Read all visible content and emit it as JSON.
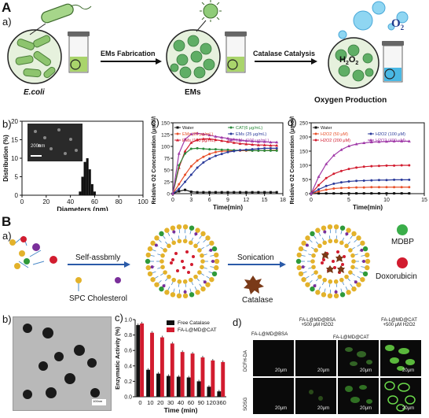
{
  "panelA": {
    "letter": "A",
    "sub_a": "a)",
    "label_ecoli": "E.coli",
    "label_ems": "EMs",
    "label_oxygen": "Oxygen Production",
    "arrow1": "EMs Fabrication",
    "arrow2": "Catalase Catalysis",
    "o2": "O",
    "o2_sub": "2",
    "h2o2": "H",
    "h2o2_sub1": "2",
    "h2o2_mid": "O",
    "h2o2_sub2": "2"
  },
  "panelAb": {
    "letter": "b)",
    "scale": "200nm",
    "chart_data": {
      "type": "bar",
      "xlabel": "Diameters (nm)",
      "ylabel": "Distribution (%)",
      "xlim": [
        0,
        100
      ],
      "ylim": [
        0,
        20
      ],
      "x_ticks": [
        "0",
        "20",
        "40",
        "60",
        "80",
        "100"
      ],
      "y_ticks": [
        "0",
        "5",
        "10",
        "15",
        "20"
      ],
      "categories": [
        48,
        50,
        52,
        54,
        56,
        58,
        60
      ],
      "values": [
        1,
        5,
        9,
        10,
        7,
        3,
        1
      ]
    }
  },
  "panelAc": {
    "letter": "c)",
    "chart_data": {
      "type": "line",
      "xlabel": "Time(min)",
      "ylabel": "Relative O2 Concentration (μmol/L)",
      "xlim": [
        0,
        18
      ],
      "ylim": [
        0,
        150
      ],
      "x_ticks": [
        "0",
        "3",
        "6",
        "9",
        "12",
        "15",
        "18"
      ],
      "y_ticks": [
        "0",
        "25",
        "50",
        "75",
        "100",
        "125",
        "150"
      ],
      "x": [
        0,
        1,
        2,
        3,
        4,
        5,
        6,
        7,
        8,
        9,
        10,
        11,
        12,
        13,
        14,
        15,
        16,
        17
      ],
      "series": [
        {
          "name": "Water",
          "color": "#111111",
          "marker": "square",
          "values": [
            0,
            5,
            8,
            4,
            3,
            3,
            3,
            3,
            3,
            3,
            3,
            3,
            3,
            3,
            3,
            3,
            3,
            3
          ]
        },
        {
          "name": "EMs (25 μg/mL)",
          "color": "#e8502a",
          "marker": "circle",
          "values": [
            0,
            20,
            40,
            58,
            70,
            78,
            84,
            88,
            90,
            90,
            91,
            91,
            91,
            91,
            91,
            91,
            92,
            92
          ]
        },
        {
          "name": "EMs (100 μg/mL)",
          "color": "#d21c2f",
          "marker": "triangle",
          "values": [
            0,
            55,
            90,
            108,
            114,
            116,
            116,
            114,
            112,
            110,
            108,
            106,
            105,
            104,
            103,
            103,
            102,
            102
          ]
        },
        {
          "name": "CAT(6 μg/mL)",
          "color": "#2a8a3a",
          "marker": "circle",
          "values": [
            0,
            60,
            85,
            95,
            96,
            95,
            94,
            94,
            93,
            93,
            92,
            92,
            92,
            91,
            91,
            91,
            91,
            91
          ]
        },
        {
          "name": "EMs (25 μg/mL)",
          "color": "#2a3a9a",
          "marker": "circle",
          "values": [
            0,
            10,
            25,
            40,
            55,
            66,
            74,
            80,
            84,
            88,
            90,
            92,
            93,
            94,
            95,
            96,
            96,
            96
          ]
        },
        {
          "name": "EMs",
          "color": "#a03aa8",
          "marker": "triangle",
          "values": [
            0,
            85,
            115,
            126,
            128,
            126,
            124,
            121,
            119,
            117,
            115,
            113,
            112,
            111,
            110,
            110,
            109,
            109
          ]
        }
      ],
      "legend_last_suffix": "(100 μg/mL)"
    }
  },
  "panelAd": {
    "letter": "d)",
    "chart_data": {
      "type": "line",
      "xlabel": "Time(min)",
      "ylabel": "Relative O2 Concentration (μmol/L)",
      "xlim": [
        0,
        15
      ],
      "ylim": [
        0,
        250
      ],
      "x_ticks": [
        "0",
        "5",
        "10",
        "15"
      ],
      "y_ticks": [
        "0",
        "50",
        "100",
        "150",
        "200",
        "250"
      ],
      "x": [
        0,
        1,
        2,
        3,
        4,
        5,
        6,
        7,
        8,
        9,
        10,
        11,
        12,
        13
      ],
      "series": [
        {
          "name": "Water",
          "color": "#111111",
          "marker": "square",
          "values": [
            0,
            1,
            1,
            1,
            1,
            1,
            1,
            1,
            1,
            1,
            1,
            1,
            1,
            1
          ]
        },
        {
          "name": "H2O2 (50 μM)",
          "color": "#e8502a",
          "marker": "circle",
          "values": [
            0,
            8,
            14,
            18,
            20,
            21,
            22,
            22,
            23,
            23,
            23,
            23,
            23,
            23
          ]
        },
        {
          "name": "H2O2 (200 μM)",
          "color": "#d21c2f",
          "marker": "circle",
          "values": [
            0,
            30,
            55,
            70,
            80,
            87,
            92,
            95,
            97,
            98,
            99,
            99,
            100,
            100
          ]
        },
        {
          "name": "H2O2 (100 μM)",
          "color": "#2a3a9a",
          "marker": "circle",
          "values": [
            0,
            15,
            27,
            35,
            40,
            43,
            45,
            46,
            47,
            48,
            48,
            49,
            49,
            49
          ]
        },
        {
          "name": "H2O2 (400 μM)",
          "color": "#a03aa8",
          "marker": "triangle",
          "values": [
            0,
            60,
            105,
            135,
            155,
            168,
            175,
            179,
            182,
            183,
            184,
            185,
            185,
            185
          ]
        }
      ]
    }
  },
  "panelB": {
    "letter": "B",
    "sub_a": "a)",
    "self_assembly": "Self-assbmly",
    "sonication": "Sonication",
    "spc": "SPC Cholesterol",
    "catalase": "Catalase",
    "mdbp": "MDBP",
    "doxorubicin": "Doxorubicin"
  },
  "panelBb": {
    "letter": "b)",
    "scale": "100nm"
  },
  "panelBc": {
    "letter": "c)",
    "chart_data": {
      "type": "bar",
      "xlabel": "Time (min)",
      "ylabel": "Enzymatic Activity (%)",
      "ylim": [
        0,
        1.0
      ],
      "y_ticks": [
        "0.0",
        "0.2",
        "0.4",
        "0.6",
        "0.8",
        "1.0"
      ],
      "categories": [
        "0",
        "10",
        "20",
        "30",
        "40",
        "60",
        "90",
        "120",
        "360"
      ],
      "series": [
        {
          "name": "Free Catalase",
          "color": "#111111",
          "values": [
            0.93,
            0.35,
            0.3,
            0.27,
            0.26,
            0.25,
            0.2,
            0.13,
            0.07
          ]
        },
        {
          "name": "FA-L@MD@CAT",
          "color": "#d21c2f",
          "values": [
            0.95,
            0.83,
            0.77,
            0.69,
            0.58,
            0.56,
            0.51,
            0.47,
            0.45
          ]
        }
      ]
    }
  },
  "panelBd": {
    "letter": "d)",
    "headers": [
      "FA-L@MD@BSA",
      "FA-L@MD@BSA +500 μM H2O2",
      "FA-L@MD@CAT",
      "FA-L@MD@CAT +500 μM H2O2"
    ],
    "rows": [
      "DCFH-DA",
      "SOSG"
    ],
    "scale": "20μm"
  }
}
